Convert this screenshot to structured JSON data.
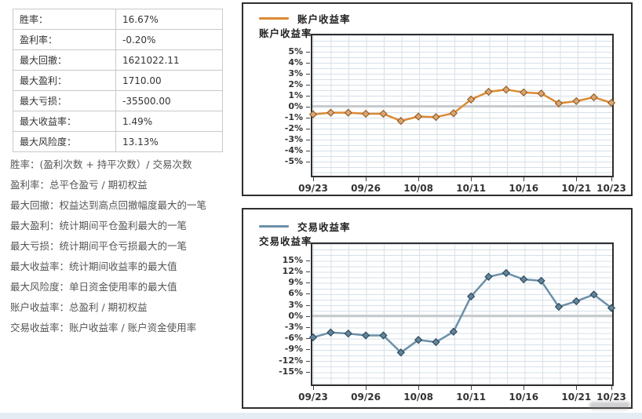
{
  "panel": {
    "stats": [
      {
        "label": "胜率：",
        "value": "16.67%"
      },
      {
        "label": "盈利率：",
        "value": "-0.20%"
      },
      {
        "label": "最大回撤：",
        "value": "1621022.11"
      },
      {
        "label": "最大盈利：",
        "value": "1710.00"
      },
      {
        "label": "最大亏损：",
        "value": "-35500.00"
      },
      {
        "label": "最大收益率：",
        "value": "1.49%"
      },
      {
        "label": "最大风险度：",
        "value": "13.13%"
      }
    ],
    "notes": [
      "胜率：(盈利次数 + 持平次数）/ 交易次数",
      "盈利率：总平仓盈亏 / 期初权益",
      "最大回撤：权益达到高点回撤幅度最大的一笔",
      "最大盈利：统计期间平仓盈利最大的一笔",
      "最大亏损：统计期间平仓亏损最大的一笔",
      "最大收益率：统计期间收益率的最大值",
      "最大风险度：单日资金使用率的最大值",
      "账户收益率：总盈利 / 期初权益",
      "交易收益率：账户收益率 / 账户资金使用率"
    ]
  },
  "colors": {
    "account_line": "#DD8A33",
    "account_marker_fill": "#D9A878",
    "account_marker_stroke": "#9A5F24",
    "trade_line": "#6C90A8",
    "trade_marker_fill": "#64869C",
    "trade_marker_stroke": "#2E4A5C",
    "grid": "#d6e0e9",
    "zero_line": "#c7cbce",
    "border": "#2e2e2e",
    "page_strip": "#e6ecf4"
  },
  "chart_data": [
    {
      "type": "line",
      "title": "账户收益率",
      "legend": "账户收益率",
      "ylabel": "账户收益率",
      "grid": true,
      "legend_position": "top-left",
      "marker": "diamond",
      "ylim": [
        -6.3,
        6.5
      ],
      "y_ticks": [
        {
          "v": 5,
          "label": "5%"
        },
        {
          "v": 4,
          "label": "4%"
        },
        {
          "v": 3,
          "label": "3%"
        },
        {
          "v": 2,
          "label": "2%"
        },
        {
          "v": 1,
          "label": "1%"
        },
        {
          "v": 0,
          "label": "0%"
        },
        {
          "v": -1,
          "label": "-1%"
        },
        {
          "v": -2,
          "label": "-2%"
        },
        {
          "v": -3,
          "label": "-3%"
        },
        {
          "v": -4,
          "label": "-4%"
        },
        {
          "v": -5,
          "label": "-5%"
        }
      ],
      "x_ticks": [
        {
          "i": 0,
          "label": "09/23"
        },
        {
          "i": 3,
          "label": "09/26"
        },
        {
          "i": 6,
          "label": "10/08"
        },
        {
          "i": 9,
          "label": "10/11"
        },
        {
          "i": 12,
          "label": "10/16"
        },
        {
          "i": 15,
          "label": "10/21"
        },
        {
          "i": 17,
          "label": "10/23"
        }
      ],
      "series": [
        {
          "name": "账户收益率",
          "values": [
            -0.7,
            -0.55,
            -0.55,
            -0.65,
            -0.65,
            -1.3,
            -0.9,
            -0.95,
            -0.6,
            0.65,
            1.35,
            1.55,
            1.3,
            1.2,
            0.3,
            0.5,
            0.85,
            0.35
          ]
        }
      ]
    },
    {
      "type": "line",
      "title": "交易收益率",
      "legend": "交易收益率",
      "ylabel": "交易收益率",
      "grid": true,
      "legend_position": "top-left",
      "marker": "diamond",
      "ylim": [
        -18.4,
        19.4
      ],
      "y_ticks": [
        {
          "v": 15,
          "label": "15%"
        },
        {
          "v": 12,
          "label": "12%"
        },
        {
          "v": 9,
          "label": "9%"
        },
        {
          "v": 6,
          "label": "6%"
        },
        {
          "v": 3,
          "label": "3%"
        },
        {
          "v": 0,
          "label": "0%"
        },
        {
          "v": -3,
          "label": "-3%"
        },
        {
          "v": -6,
          "label": "-6%"
        },
        {
          "v": -9,
          "label": "-9%"
        },
        {
          "v": -12,
          "label": "-12%"
        },
        {
          "v": -15,
          "label": "-15%"
        }
      ],
      "x_ticks": [
        {
          "i": 0,
          "label": "09/23"
        },
        {
          "i": 3,
          "label": "09/26"
        },
        {
          "i": 6,
          "label": "10/08"
        },
        {
          "i": 9,
          "label": "10/11"
        },
        {
          "i": 12,
          "label": "10/16"
        },
        {
          "i": 15,
          "label": "10/21"
        },
        {
          "i": 17,
          "label": "10/23"
        }
      ],
      "series": [
        {
          "name": "交易收益率",
          "values": [
            -5.7,
            -4.4,
            -4.7,
            -5.2,
            -5.2,
            -9.8,
            -6.4,
            -7.0,
            -4.2,
            5.3,
            10.6,
            11.6,
            9.9,
            9.5,
            2.5,
            4.0,
            5.8,
            2.2
          ]
        }
      ]
    }
  ]
}
